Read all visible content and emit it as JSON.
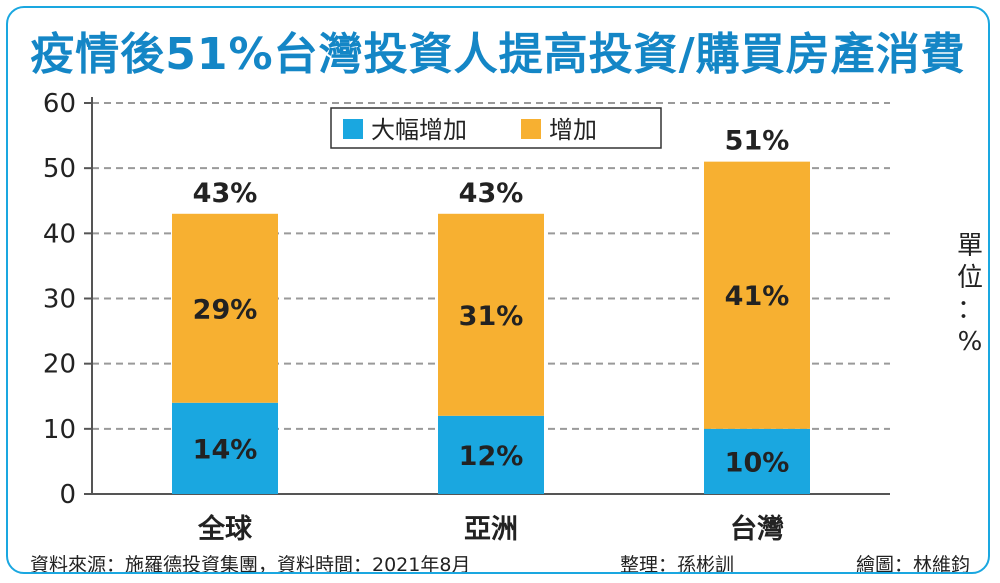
{
  "title": "疫情後51%台灣投資人提高投資/購買房產消費",
  "unit_label": [
    "單",
    "位",
    "：",
    "%"
  ],
  "footer": {
    "source": "資料來源：施羅德投資集團，資料時間：2021年8月",
    "editor": "整理：孫彬訓",
    "artist": "繪圖：林維鈞"
  },
  "colors": {
    "major_increase": "#1aa7e0",
    "increase": "#f7b031",
    "title": "#1486c6"
  },
  "chart_data": {
    "type": "bar",
    "stacked": true,
    "categories": [
      "全球",
      "亞洲",
      "台灣"
    ],
    "series": [
      {
        "name": "大幅增加",
        "values": [
          14,
          12,
          10
        ],
        "labels": [
          "14%",
          "12%",
          "10%"
        ]
      },
      {
        "name": "增加",
        "values": [
          29,
          31,
          41
        ],
        "labels": [
          "29%",
          "31%",
          "41%"
        ]
      }
    ],
    "totals": [
      43,
      43,
      51
    ],
    "total_labels": [
      "43%",
      "43%",
      "51%"
    ],
    "yticks": [
      0,
      10,
      20,
      30,
      40,
      50,
      60
    ],
    "ylim": [
      0,
      60
    ],
    "grid": true,
    "legend_position": "top-center"
  }
}
